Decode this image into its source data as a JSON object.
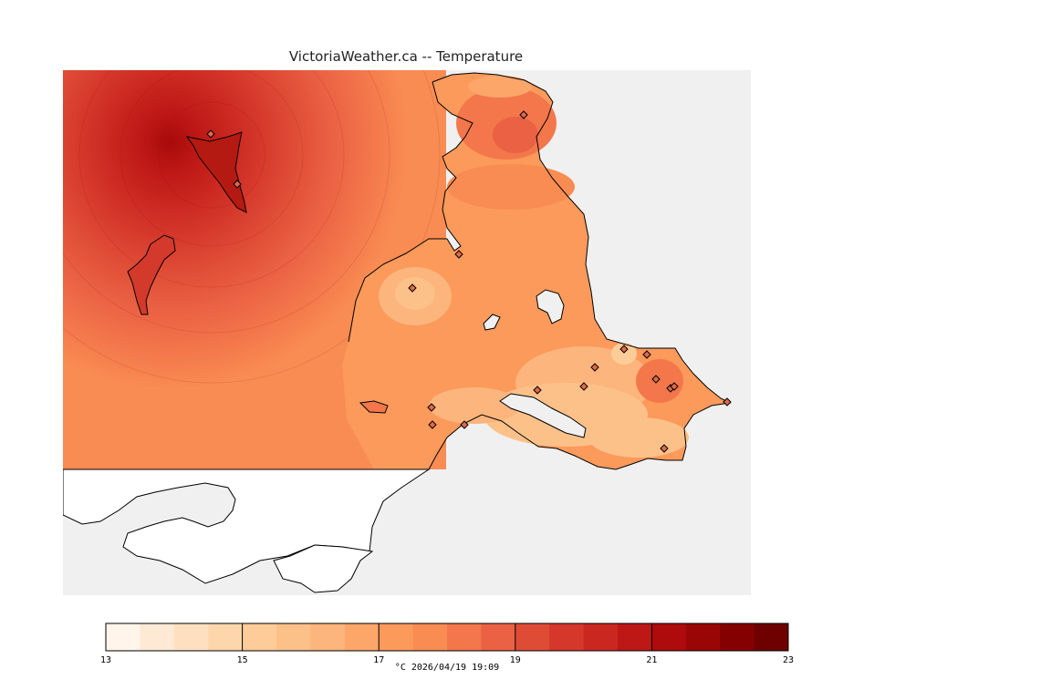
{
  "title": "VictoriaWeather.ca -- Temperature",
  "legend": {
    "unit": "°C",
    "min": 13,
    "max": 23,
    "tick_labels": [
      "13",
      "15",
      "17",
      "19",
      "21",
      "23"
    ],
    "colors": [
      "#fff5ea",
      "#fee9d4",
      "#fee0c0",
      "#fdd6ac",
      "#fdcc99",
      "#fcc189",
      "#fcb57c",
      "#fca66a",
      "#fb9a5b",
      "#f98c52",
      "#f3774b",
      "#ea6143",
      "#df4c36",
      "#d5382b",
      "#ca2720",
      "#bd1816",
      "#ae0b0c",
      "#9a0606",
      "#850000",
      "#6e0000"
    ]
  },
  "timestamp": "2026/04/19 19:09",
  "stamp_text": "°C  2026/04/19 19:09",
  "map": {
    "background_color": "#f0f0f0",
    "land_outside_color": "#ffffff",
    "coast_color": "#000000",
    "marker": "diamond-station-icon"
  }
}
